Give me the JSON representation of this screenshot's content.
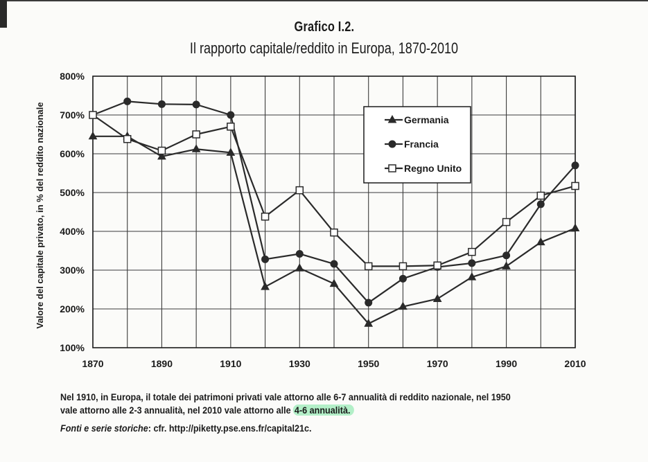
{
  "colors": {
    "line": "#2a2a2a",
    "background": "#fbfbf9",
    "highlight": "#7de6a0"
  },
  "header": {
    "title": "Grafico I.2.",
    "subtitle": "Il rapporto capitale/reddito in Europa, 1870-2010"
  },
  "chart_data": {
    "type": "line",
    "title": "Grafico I.2.",
    "subtitle": "Il rapporto capitale/reddito in Europa, 1870-2010",
    "xlabel": "",
    "ylabel": "Valore del capitale privato, in % del reddito nazionale",
    "x": [
      1870,
      1880,
      1890,
      1900,
      1910,
      1920,
      1930,
      1940,
      1950,
      1960,
      1970,
      1980,
      1990,
      2000,
      2010
    ],
    "xlim": [
      1870,
      2010
    ],
    "ylim": [
      100,
      800
    ],
    "x_ticks": [
      "1870",
      "1890",
      "1910",
      "1930",
      "1950",
      "1970",
      "1990",
      "2010"
    ],
    "y_ticks": [
      "100%",
      "200%",
      "300%",
      "400%",
      "500%",
      "600%",
      "700%",
      "800%"
    ],
    "grid": true,
    "legend_position": "top-right",
    "series": [
      {
        "name": "Germania",
        "marker": "triangle",
        "values": [
          645,
          645,
          593,
          612,
          603,
          257,
          305,
          265,
          162,
          206,
          226,
          282,
          310,
          372,
          408
        ]
      },
      {
        "name": "Francia",
        "marker": "circle",
        "values": [
          700,
          735,
          728,
          727,
          700,
          328,
          342,
          316,
          216,
          278,
          308,
          318,
          338,
          470,
          570
        ]
      },
      {
        "name": "Regno Unito",
        "marker": "square",
        "values": [
          700,
          638,
          608,
          650,
          670,
          438,
          506,
          397,
          310,
          310,
          312,
          347,
          424,
          492,
          517
        ]
      }
    ]
  },
  "caption": {
    "line1": "Nel 1910, in Europa, il totale dei patrimoni privati vale attorno alle 6-7 annualità di reddito nazionale, nel 1950",
    "line2_prefix": "vale attorno alle 2-3 annualità, nel 2010 vale attorno alle",
    "line2_highlight": "4-6 annualità."
  },
  "sources": {
    "label": "Fonti e serie storiche",
    "text": ": cfr. http://piketty.pse.ens.fr/capital21c."
  }
}
